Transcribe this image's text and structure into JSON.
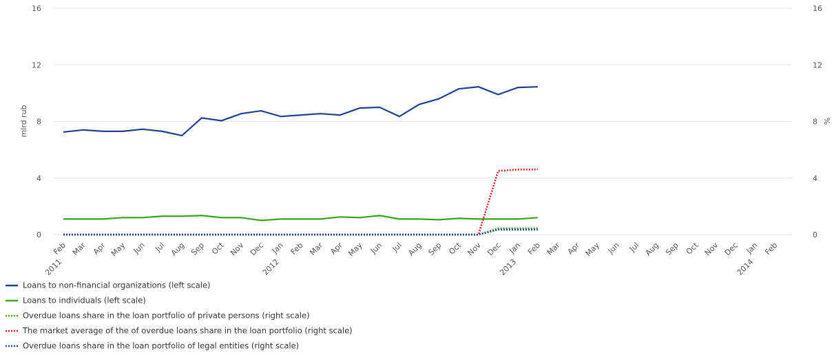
{
  "chart_data": {
    "type": "line",
    "categories": [
      "Feb",
      "Mar",
      "Apr",
      "May",
      "Jun",
      "Jul",
      "Aug",
      "Sep",
      "Oct",
      "Nov",
      "Dec",
      "Jan",
      "Feb",
      "Mar",
      "Apr",
      "May",
      "Jun",
      "Jul",
      "Aug",
      "Sep",
      "Oct",
      "Nov",
      "Dec",
      "Jan",
      "Feb",
      "Mar",
      "Apr",
      "May",
      "Jun",
      "Jul",
      "Aug",
      "Sep",
      "Oct",
      "Nov",
      "Dec",
      "Jan",
      "Feb"
    ],
    "years": [
      "2011",
      null,
      null,
      null,
      null,
      null,
      null,
      null,
      null,
      null,
      null,
      "2012",
      null,
      null,
      null,
      null,
      null,
      null,
      null,
      null,
      null,
      null,
      null,
      "2013",
      null,
      null,
      null,
      null,
      null,
      null,
      null,
      null,
      null,
      null,
      null,
      "2014",
      null
    ],
    "y_label": "mlrd rub",
    "y2_label": "%",
    "ylim": [
      0,
      16
    ],
    "yticks": [
      0,
      4,
      8,
      12,
      16
    ],
    "y2lim": [
      0,
      16
    ],
    "y2ticks": [
      0,
      4,
      8,
      12,
      16
    ],
    "grid": true,
    "series": [
      {
        "name": "Loans to non-financial organizations (left scale)",
        "color": "#1f3f8f",
        "style": "solid",
        "values": [
          7.25,
          7.4,
          7.3,
          7.3,
          7.45,
          7.3,
          7.0,
          8.25,
          8.05,
          8.55,
          8.75,
          8.35,
          8.45,
          8.55,
          8.45,
          8.95,
          9.0,
          8.35,
          9.2,
          9.6,
          10.3,
          10.45,
          9.9,
          10.4,
          10.45,
          null,
          null,
          null,
          null,
          null,
          null,
          null,
          null,
          null,
          null,
          null,
          null
        ]
      },
      {
        "name": "Loans to individuals (left scale)",
        "color": "#3aa21b",
        "style": "solid",
        "values": [
          1.1,
          1.1,
          1.1,
          1.2,
          1.2,
          1.3,
          1.3,
          1.35,
          1.2,
          1.2,
          1.0,
          1.1,
          1.1,
          1.1,
          1.25,
          1.2,
          1.35,
          1.1,
          1.1,
          1.05,
          1.15,
          1.1,
          1.1,
          1.1,
          1.2,
          null,
          null,
          null,
          null,
          null,
          null,
          null,
          null,
          null,
          null,
          null,
          null
        ]
      },
      {
        "name": "Overdue loans share in the loan portfolio of private persons (right scale)",
        "color": "#3aa21b",
        "style": "dotted",
        "axis": "y2",
        "values": [
          0,
          0,
          0,
          0,
          0,
          0,
          0,
          0,
          0,
          0,
          0,
          0,
          0,
          0,
          0,
          0,
          0,
          0,
          0,
          0,
          0,
          0,
          0.45,
          0.45,
          0.45,
          null,
          null,
          null,
          null,
          null,
          null,
          null,
          null,
          null,
          null,
          null,
          null
        ]
      },
      {
        "name": "The market average of the of overdue loans share in the loan portfolio (right scale)",
        "color": "#e0141e",
        "style": "dotted",
        "axis": "y2",
        "values": [
          0,
          0,
          0,
          0,
          0,
          0,
          0,
          0,
          0,
          0,
          0,
          0,
          0,
          0,
          0,
          0,
          0,
          0,
          0,
          0,
          0,
          0,
          4.5,
          4.6,
          4.6,
          null,
          null,
          null,
          null,
          null,
          null,
          null,
          null,
          null,
          null,
          null,
          null
        ]
      },
      {
        "name": "Overdue loans share in the loan portfolio of legal entities (right scale)",
        "color": "#1f3f8f",
        "style": "dotted",
        "axis": "y2",
        "values": [
          0,
          0,
          0,
          0,
          0,
          0,
          0,
          0,
          0,
          0,
          0,
          0,
          0,
          0,
          0,
          0,
          0,
          0,
          0,
          0,
          0,
          0,
          0.35,
          0.35,
          0.35,
          null,
          null,
          null,
          null,
          null,
          null,
          null,
          null,
          null,
          null,
          null,
          null
        ]
      }
    ]
  }
}
